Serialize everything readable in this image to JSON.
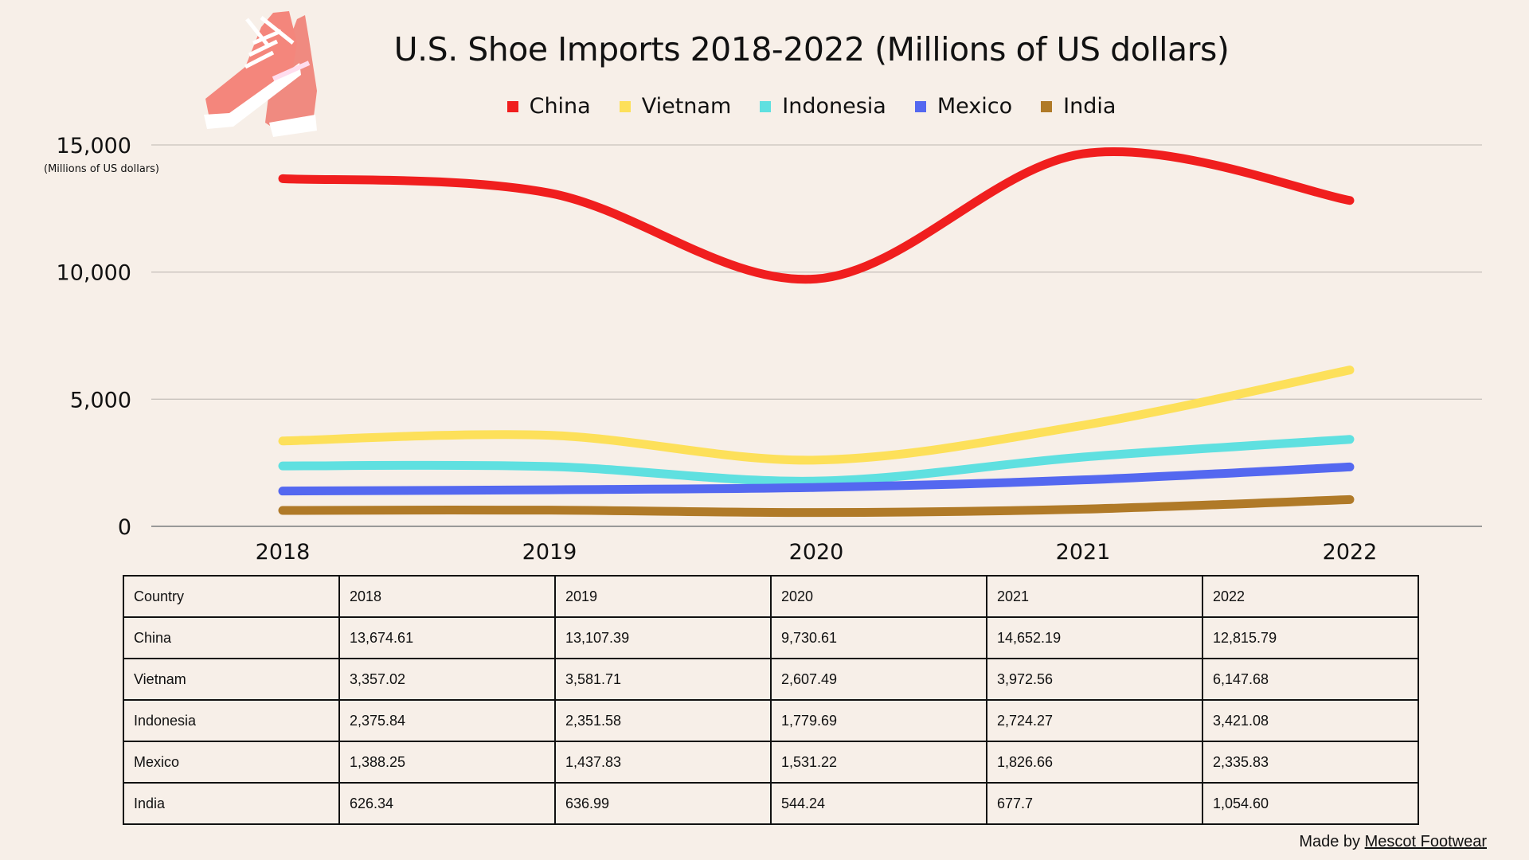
{
  "chart_data": {
    "type": "line",
    "title": "U.S. Shoe Imports 2018-2022 (Millions of US dollars)",
    "ylabel": "(Millions of US dollars)",
    "xlabel": "",
    "categories": [
      "2018",
      "2019",
      "2020",
      "2021",
      "2022"
    ],
    "ylim": [
      0,
      15000
    ],
    "yticks": [
      0,
      5000,
      10000,
      15000
    ],
    "ytick_labels": [
      "0",
      "5,000",
      "10,000",
      "15,000"
    ],
    "grid": true,
    "legend_position": "top",
    "smooth": true,
    "series": [
      {
        "name": "China",
        "color": "#f01e1e",
        "values": [
          13674.61,
          13107.39,
          9730.61,
          14652.19,
          12815.79
        ]
      },
      {
        "name": "Vietnam",
        "color": "#fde05a",
        "values": [
          3357.02,
          3581.71,
          2607.49,
          3972.56,
          6147.68
        ]
      },
      {
        "name": "Indonesia",
        "color": "#5fe0e0",
        "values": [
          2375.84,
          2351.58,
          1779.69,
          2724.27,
          3421.08
        ]
      },
      {
        "name": "Mexico",
        "color": "#5468f0",
        "values": [
          1388.25,
          1437.83,
          1531.22,
          1826.66,
          2335.83
        ]
      },
      {
        "name": "India",
        "color": "#b07a28",
        "values": [
          626.34,
          636.99,
          544.24,
          677.7,
          1054.6
        ]
      }
    ]
  },
  "table": {
    "header": [
      "Country",
      "2018",
      "2019",
      "2020",
      "2021",
      "2022"
    ],
    "rows": [
      [
        "China",
        "13,674.61",
        "13,107.39",
        "9,730.61",
        "14,652.19",
        "12,815.79"
      ],
      [
        "Vietnam",
        "3,357.02",
        "3,581.71",
        "2,607.49",
        "3,972.56",
        "6,147.68"
      ],
      [
        "Indonesia",
        "2,375.84",
        "2,351.58",
        "1,779.69",
        "2,724.27",
        "3,421.08"
      ],
      [
        "Mexico",
        "1,388.25",
        "1,437.83",
        "1,531.22",
        "1,826.66",
        "2,335.83"
      ],
      [
        "India",
        "626.34",
        "636.99",
        "544.24",
        "677.7",
        "1,054.60"
      ]
    ]
  },
  "footer": {
    "prefix": "Made by ",
    "link": "Mescot Footwear"
  },
  "image": {
    "icon": "pink-sneakers-image"
  }
}
